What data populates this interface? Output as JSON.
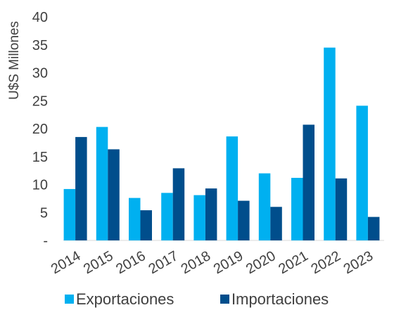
{
  "chart_data": {
    "type": "bar",
    "title": "",
    "xlabel": "",
    "ylabel": "U$S Millones",
    "categories": [
      "2014",
      "2015",
      "2016",
      "2017",
      "2018",
      "2019",
      "2020",
      "2021",
      "2022",
      "2023"
    ],
    "series": [
      {
        "name": "Exportaciones",
        "color": "#00b0f0",
        "values": [
          9.2,
          20.3,
          7.6,
          8.5,
          8.1,
          18.6,
          12.0,
          11.2,
          34.5,
          24.1
        ]
      },
      {
        "name": "Importaciones",
        "color": "#004e8c",
        "values": [
          18.5,
          16.3,
          5.4,
          12.9,
          9.3,
          7.1,
          6.0,
          20.7,
          11.1,
          4.2
        ]
      }
    ],
    "ylim": [
      0,
      40
    ],
    "yticks": [
      {
        "value": 0,
        "label": "-"
      },
      {
        "value": 5,
        "label": "5"
      },
      {
        "value": 10,
        "label": "10"
      },
      {
        "value": 15,
        "label": "15"
      },
      {
        "value": 20,
        "label": "20"
      },
      {
        "value": 25,
        "label": "25"
      },
      {
        "value": 30,
        "label": "30"
      },
      {
        "value": 35,
        "label": "35"
      },
      {
        "value": 40,
        "label": "40"
      }
    ],
    "grid": false,
    "legend_position": "bottom"
  }
}
